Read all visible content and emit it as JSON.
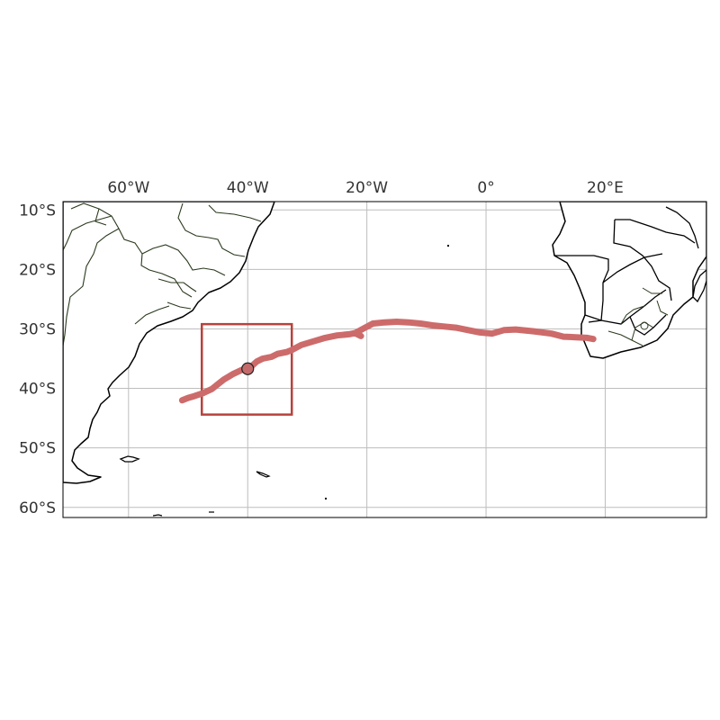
{
  "map": {
    "lon_range": [
      -71,
      37
    ],
    "lat_range": [
      -61.7,
      -8.6
    ],
    "x_ticks": [
      {
        "lon": -60,
        "label": "60°W"
      },
      {
        "lon": -40,
        "label": "40°W"
      },
      {
        "lon": -20,
        "label": "20°W"
      },
      {
        "lon": 0,
        "label": "0°"
      },
      {
        "lon": 20,
        "label": "20°E"
      }
    ],
    "y_ticks": [
      {
        "lat": -10,
        "label": "10°S"
      },
      {
        "lat": -20,
        "label": "20°S"
      },
      {
        "lat": -30,
        "label": "30°S"
      },
      {
        "lat": -40,
        "label": "40°S"
      },
      {
        "lat": -50,
        "label": "50°S"
      },
      {
        "lat": -60,
        "label": "60°S"
      }
    ],
    "grid": true,
    "track": {
      "color": "#cd6b6b",
      "points": [
        [
          -51,
          -42
        ],
        [
          -50,
          -41.6
        ],
        [
          -49,
          -41.3
        ],
        [
          -47.5,
          -40.8
        ],
        [
          -46,
          -40.1
        ],
        [
          -45,
          -39.3
        ],
        [
          -44,
          -38.5
        ],
        [
          -42.5,
          -37.6
        ],
        [
          -41,
          -36.9
        ],
        [
          -39.5,
          -36.4
        ],
        [
          -38.5,
          -35.5
        ],
        [
          -37.5,
          -35
        ],
        [
          -36,
          -34.7
        ],
        [
          -35,
          -34.2
        ],
        [
          -33.5,
          -33.9
        ],
        [
          -32.5,
          -33.5
        ],
        [
          -31,
          -32.7
        ],
        [
          -29,
          -32.1
        ],
        [
          -27,
          -31.5
        ],
        [
          -25,
          -31.1
        ],
        [
          -23,
          -30.9
        ],
        [
          -22,
          -30.7
        ],
        [
          -21,
          -31.2
        ],
        [
          -21.8,
          -30.6
        ],
        [
          -20.5,
          -29.9
        ],
        [
          -19,
          -29.1
        ],
        [
          -17,
          -28.9
        ],
        [
          -15,
          -28.8
        ],
        [
          -13,
          -28.9
        ],
        [
          -11,
          -29.1
        ],
        [
          -9,
          -29.4
        ],
        [
          -7,
          -29.6
        ],
        [
          -5,
          -29.8
        ],
        [
          -3,
          -30.2
        ],
        [
          -1,
          -30.6
        ],
        [
          1,
          -30.8
        ],
        [
          3,
          -30.2
        ],
        [
          5,
          -30.1
        ],
        [
          8,
          -30.4
        ],
        [
          11,
          -30.8
        ],
        [
          13,
          -31.3
        ],
        [
          15,
          -31.4
        ],
        [
          17,
          -31.5
        ],
        [
          18,
          -31.7
        ]
      ]
    },
    "marker": {
      "lon": -40,
      "lat": -36.7
    },
    "box": {
      "color": "#b8423d",
      "lon_min": -47.7,
      "lon_max": -32.6,
      "lat_min": -44.4,
      "lat_max": -29.2
    }
  }
}
